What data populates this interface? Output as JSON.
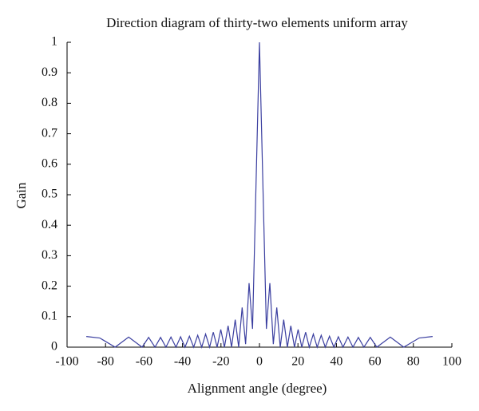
{
  "chart_data": {
    "type": "line",
    "title": "Direction diagram of thirty-two elements uniform array",
    "x_label": "Alignment angle (degree)",
    "y_label": "Gain",
    "x": [
      -90,
      -83,
      -75,
      -68,
      -61,
      -57.6,
      -54.3,
      -51.4,
      -48.6,
      -46,
      -43.4,
      -41,
      -38.7,
      -36.4,
      -34.2,
      -32.1,
      -30,
      -28,
      -25.9,
      -24,
      -22,
      -20.1,
      -18.2,
      -16.3,
      -14.5,
      -12.6,
      -10.8,
      -9,
      -7.2,
      -5.4,
      -3.6,
      0,
      3.6,
      5.4,
      7.2,
      9,
      10.8,
      12.6,
      14.5,
      16.3,
      18.2,
      20.1,
      22,
      24,
      25.9,
      28,
      30,
      32.1,
      34.2,
      36.4,
      38.7,
      41,
      43.4,
      46,
      48.6,
      51.4,
      54.3,
      57.6,
      61,
      68,
      75,
      83,
      90
    ],
    "series": [
      {
        "color": "#3b3fa0",
        "values": [
          0.035,
          0.03,
          0,
          0.033,
          0,
          0.032,
          0,
          0.032,
          0,
          0.033,
          0,
          0.034,
          0,
          0.036,
          0,
          0.039,
          0,
          0.043,
          0,
          0.049,
          0,
          0.058,
          0,
          0.07,
          0,
          0.09,
          0,
          0.13,
          0.01,
          0.21,
          0.06,
          1,
          0.06,
          0.21,
          0.01,
          0.13,
          0,
          0.09,
          0,
          0.07,
          0,
          0.058,
          0,
          0.049,
          0,
          0.043,
          0,
          0.039,
          0,
          0.036,
          0,
          0.034,
          0,
          0.033,
          0,
          0.032,
          0,
          0.032,
          0,
          0.033,
          0,
          0.03,
          0.035
        ]
      }
    ],
    "xlim": [
      -100,
      100
    ],
    "xticks": [
      -100,
      -80,
      -60,
      -40,
      -20,
      0,
      20,
      40,
      60,
      80,
      100
    ],
    "ylim": [
      0,
      1
    ],
    "yticks": [
      0,
      0.1,
      0.2,
      0.3,
      0.4,
      0.5,
      0.6,
      0.7,
      0.8,
      0.9,
      1
    ]
  }
}
